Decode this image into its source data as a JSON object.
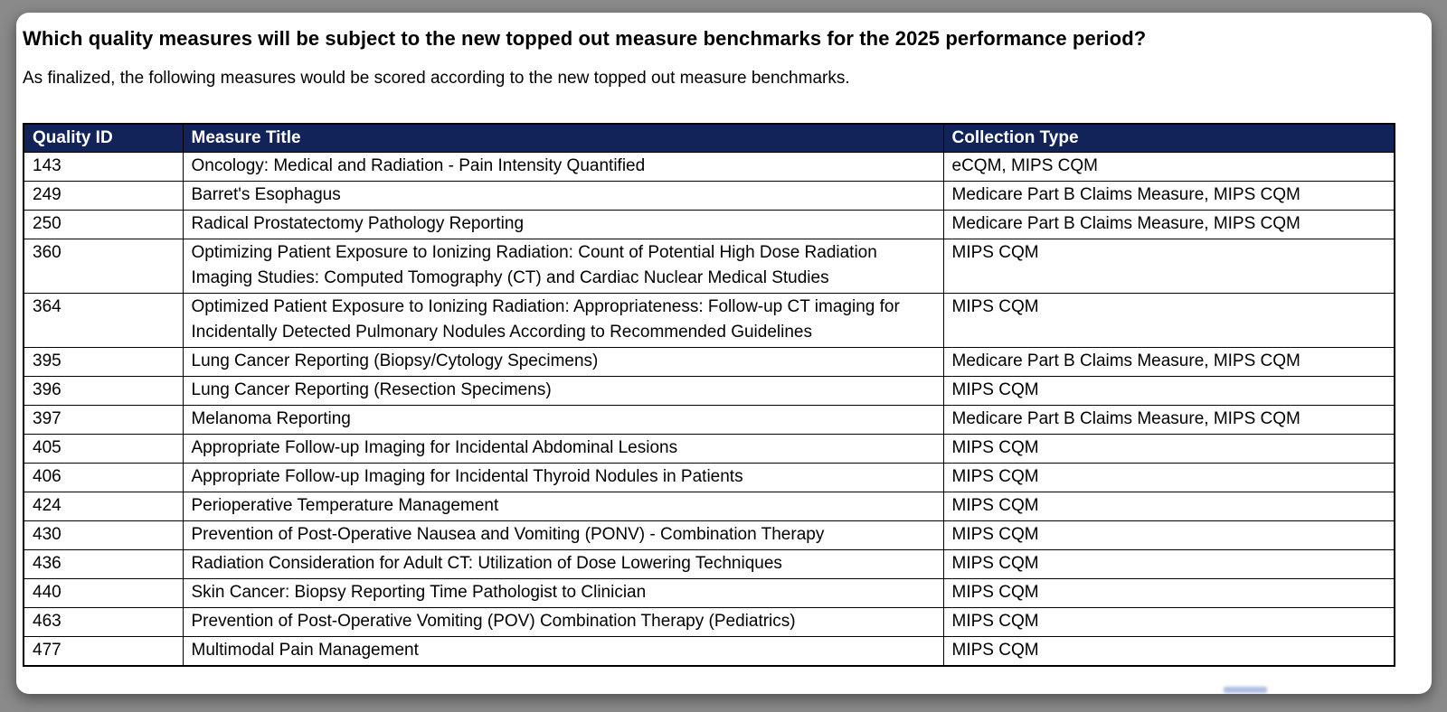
{
  "page": {
    "heading": "Which quality measures will be subject to the new topped out measure benchmarks for the 2025 performance period?",
    "subheading": "As finalized, the following measures would be scored according to the new topped out measure benchmarks."
  },
  "table": {
    "columns": [
      "Quality ID",
      "Measure Title",
      "Collection Type"
    ],
    "rows": [
      {
        "quality_id": "143",
        "measure_title": "Oncology: Medical and Radiation - Pain Intensity Quantified",
        "collection_type": "eCQM, MIPS CQM"
      },
      {
        "quality_id": "249",
        "measure_title": "Barret's Esophagus",
        "collection_type": "Medicare Part B Claims Measure, MIPS CQM"
      },
      {
        "quality_id": "250",
        "measure_title": "Radical Prostatectomy Pathology Reporting",
        "collection_type": "Medicare Part B Claims Measure, MIPS CQM"
      },
      {
        "quality_id": "360",
        "measure_title": "Optimizing Patient Exposure to Ionizing Radiation: Count of Potential High Dose Radiation Imaging Studies: Computed Tomography (CT) and Cardiac Nuclear Medical Studies",
        "collection_type": "MIPS CQM"
      },
      {
        "quality_id": "364",
        "measure_title": "Optimized Patient Exposure to Ionizing Radiation: Appropriateness: Follow-up CT imaging for Incidentally Detected Pulmonary Nodules According to Recommended Guidelines",
        "collection_type": "MIPS CQM"
      },
      {
        "quality_id": "395",
        "measure_title": "Lung Cancer Reporting (Biopsy/Cytology Specimens)",
        "collection_type": "Medicare Part B Claims Measure, MIPS CQM"
      },
      {
        "quality_id": "396",
        "measure_title": "Lung Cancer Reporting (Resection Specimens)",
        "collection_type": "MIPS CQM"
      },
      {
        "quality_id": "397",
        "measure_title": "Melanoma Reporting",
        "collection_type": "Medicare Part B Claims Measure, MIPS CQM"
      },
      {
        "quality_id": "405",
        "measure_title": "Appropriate Follow-up Imaging for Incidental Abdominal Lesions",
        "collection_type": "MIPS CQM"
      },
      {
        "quality_id": "406",
        "measure_title": "Appropriate Follow-up Imaging for Incidental Thyroid Nodules in Patients",
        "collection_type": "MIPS CQM"
      },
      {
        "quality_id": "424",
        "measure_title": "Perioperative Temperature Management",
        "collection_type": "MIPS CQM"
      },
      {
        "quality_id": "430",
        "measure_title": "Prevention of Post-Operative Nausea and Vomiting (PONV) - Combination Therapy",
        "collection_type": "MIPS CQM"
      },
      {
        "quality_id": "436",
        "measure_title": "Radiation Consideration for Adult CT: Utilization of Dose Lowering Techniques",
        "collection_type": "MIPS CQM"
      },
      {
        "quality_id": "440",
        "measure_title": "Skin Cancer: Biopsy Reporting Time Pathologist to Clinician",
        "collection_type": "MIPS CQM"
      },
      {
        "quality_id": "463",
        "measure_title": "Prevention of Post-Operative Vomiting (POV) Combination Therapy (Pediatrics)",
        "collection_type": "MIPS CQM"
      },
      {
        "quality_id": "477",
        "measure_title": "Multimodal Pain Management",
        "collection_type": "MIPS CQM"
      }
    ]
  },
  "colors": {
    "page_bg": "#8a8a8a",
    "card_bg": "#ffffff",
    "header_bg": "#12235a",
    "header_text": "#ffffff",
    "border": "#000000",
    "text": "#000000",
    "watermark_blue": "#4a6fbd"
  }
}
